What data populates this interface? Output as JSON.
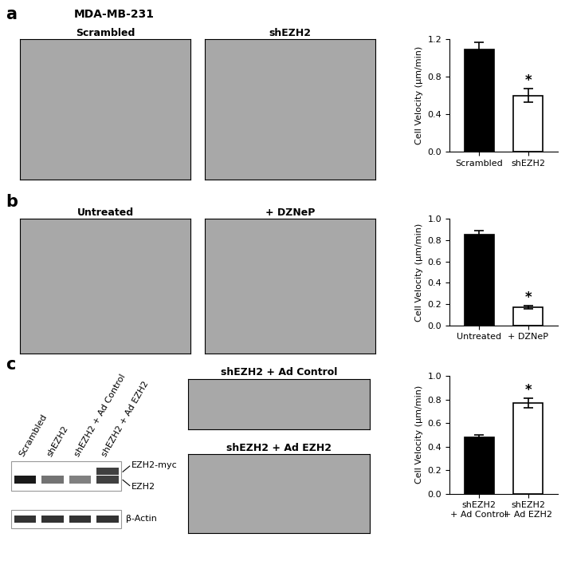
{
  "title": "MDA-MB-231",
  "panel_letters": [
    "a",
    "b",
    "c"
  ],
  "images": [
    [
      "Scrambled",
      "shEZH2"
    ],
    [
      "Untreated",
      "+ DZNeP"
    ],
    [
      "shEZH2 + Ad Control",
      "shEZH2 + Ad EZH2"
    ]
  ],
  "blot": {
    "lanes": [
      "Scrambled",
      "shEZH2",
      "shEZH2 + Ad Control",
      "shEZH2 + Ad EZH2"
    ],
    "bands": [
      "EZH2-myc",
      "EZH2",
      "β-Actin"
    ]
  },
  "chart_data": [
    {
      "type": "bar",
      "categories": [
        "Scrambled",
        "shEZH2"
      ],
      "values": [
        1.09,
        0.6
      ],
      "errors": [
        0.08,
        0.07
      ],
      "colors": [
        "#000000",
        "#ffffff"
      ],
      "ylabel": "Cell Velocity (μm/min)",
      "ylim": [
        0.0,
        1.2
      ],
      "yticks": [
        0.0,
        0.4,
        0.8,
        1.2
      ],
      "annotations": [
        {
          "text": "*",
          "category": "shEZH2"
        }
      ]
    },
    {
      "type": "bar",
      "categories": [
        "Untreated",
        "+ DZNeP"
      ],
      "values": [
        0.85,
        0.17
      ],
      "errors": [
        0.04,
        0.015
      ],
      "colors": [
        "#000000",
        "#ffffff"
      ],
      "ylabel": "Cell Velocity (μm/min)",
      "ylim": [
        0.0,
        1.0
      ],
      "yticks": [
        0.0,
        0.2,
        0.4,
        0.6,
        0.8,
        1.0
      ],
      "annotations": [
        {
          "text": "*",
          "category": "+ DZNeP"
        }
      ]
    },
    {
      "type": "bar",
      "categories": [
        "shEZH2\n+ Ad Control",
        "shEZH2\n+ Ad EZH2"
      ],
      "values": [
        0.48,
        0.77
      ],
      "errors": [
        0.02,
        0.04
      ],
      "colors": [
        "#000000",
        "#ffffff"
      ],
      "ylabel": "Cell Velocity (μm/min)",
      "ylim": [
        0.0,
        1.0
      ],
      "yticks": [
        0.0,
        0.2,
        0.4,
        0.6,
        0.8,
        1.0
      ],
      "annotations": [
        {
          "text": "*",
          "category": "shEZH2\n+ Ad EZH2"
        }
      ]
    }
  ]
}
